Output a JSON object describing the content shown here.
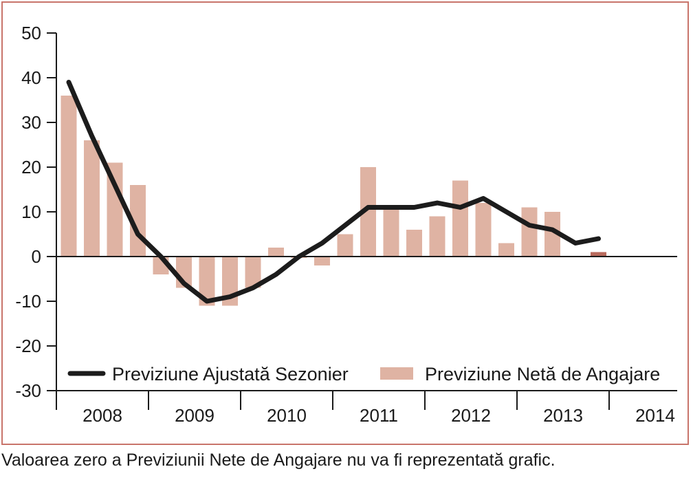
{
  "chart_data": {
    "type": "bar",
    "ylim": [
      -30,
      50
    ],
    "yticks": [
      50,
      40,
      30,
      20,
      10,
      0,
      -10,
      -20,
      -30
    ],
    "year_labels": [
      "2008",
      "2009",
      "2010",
      "2011",
      "2012",
      "2013",
      "2014"
    ],
    "quarters": [
      "2008 Q1",
      "2008 Q2",
      "2008 Q3",
      "2008 Q4",
      "2009 Q1",
      "2009 Q2",
      "2009 Q3",
      "2009 Q4",
      "2010 Q1",
      "2010 Q2",
      "2010 Q3",
      "2010 Q4",
      "2011 Q1",
      "2011 Q2",
      "2011 Q3",
      "2011 Q4",
      "2012 Q1",
      "2012 Q2",
      "2012 Q3",
      "2012 Q4",
      "2013 Q1",
      "2013 Q2",
      "2013 Q3",
      "2013 Q4",
      "2014 Q1"
    ],
    "series": [
      {
        "name": "Previziune Ajustată Sezonier",
        "type": "line",
        "color": "#1c1c1c",
        "values": [
          39,
          27,
          16,
          5,
          0,
          -6,
          -10,
          -9,
          -7,
          -4,
          0,
          3,
          7,
          11,
          11,
          11,
          12,
          11,
          13,
          10,
          7,
          6,
          3,
          4,
          null
        ]
      },
      {
        "name": "Previziune Netă de Angajare",
        "type": "bar",
        "color": "#dfb3a3",
        "values": [
          36,
          26,
          21,
          16,
          -4,
          -7,
          -11,
          -11,
          -7,
          2,
          0,
          -2,
          5,
          20,
          11,
          6,
          9,
          17,
          12,
          3,
          11,
          10,
          null,
          1,
          null
        ]
      }
    ],
    "highlight_color": "#b86a5c",
    "legend": [
      "Previziune Ajustată Sezonier",
      "Previziune Netă de Angajare"
    ]
  },
  "footnote": "Valoarea zero a Previziunii Nete de Angajare nu va fi reprezentată grafic."
}
